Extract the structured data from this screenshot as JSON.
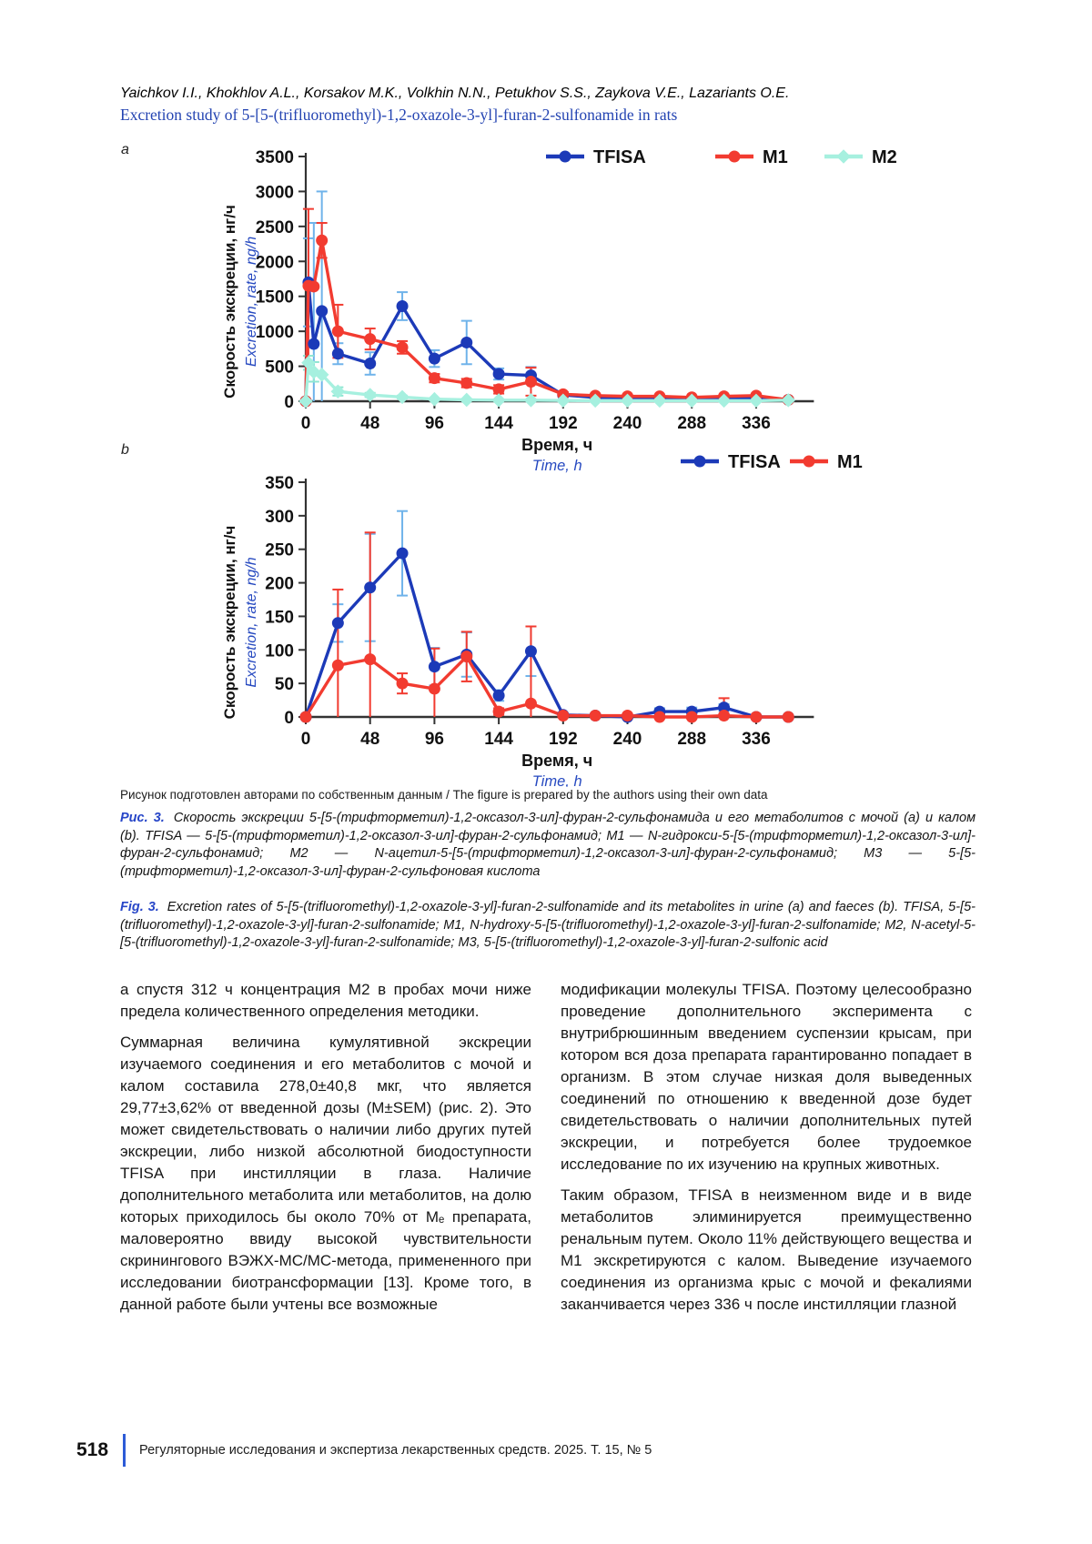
{
  "header": {
    "authors": "Yaichkov I.I., Khokhlov A.L., Korsakov M.K., Volkhin N.N., Petukhov S.S., Zaykova V.E., Lazariants O.E.",
    "title": "Excretion study of 5-[5-(trifluoromethyl)-1,2-oxazole-3-yl]-furan-2-sulfonamide in rats"
  },
  "figure": {
    "source_note": "Рисунок подготовлен авторами по собственным данным / The figure is prepared by the authors using their own data",
    "caption_ru_label": "Рис. 3.",
    "caption_ru": "Скорость экскреции 5-[5-(трифторметил)-1,2-оксазол-3-ил]-фуран-2-сульфонамида и его метаболитов с мочой (a) и калом (b). TFISA — 5-[5-(трифторметил)-1,2-оксазол-3-ил]-фуран-2-сульфонамид; M1 — N-гидрокси-5-[5-(трифторметил)-1,2-оксазол-3-ил]-фуран-2-сульфонамид; M2 — N-ацетил-5-[5-(трифторметил)-1,2-оксазол-3-ил]-фуран-2-сульфонамид; M3 — 5-[5-(трифторметил)-1,2-оксазол-3-ил]-фуран-2-сульфоновая кислота",
    "caption_en_label": "Fig. 3.",
    "caption_en": "Excretion rates of 5-[5-(trifluoromethyl)-1,2-oxazole-3-yl]-furan-2-sulfonamide and its metabolites in urine (a) and faeces (b). TFISA, 5-[5-(trifluoromethyl)-1,2-oxazole-3-yl]-furan-2-sulfonamide; M1, N-hydroxy-5-[5-(trifluoromethyl)-1,2-oxazole-3-yl]-furan-2-sulfonamide; M2, N-acetyl-5-[5-(trifluoromethyl)-1,2-oxazole-3-yl]-furan-2-sulfonamide; M3, 5-[5-(trifluoromethyl)-1,2-oxazole-3-yl]-furan-2-sulfonic acid"
  },
  "body": {
    "left": [
      "а спустя 312 ч концентрация M2 в пробах мочи ниже предела количественного определения методики.",
      "Суммарная величина кумулятивной экскреции изучаемого соединения и его метаболитов с мочой и калом составила 278,0±40,8 мкг, что является 29,77±3,62% от введенной дозы (M±SEM) (рис. 2). Это может свидетельствовать о наличии либо других путей экскреции, либо низкой абсолютной биодоступности TFISA при инстилляции в глаза. Наличие дополнительного метаболита или метаболитов, на долю которых приходилось бы около 70% от Mₑ препарата, маловероятно ввиду высокой чувствительности скринингового ВЭЖХ-МС/МС-метода, примененного при исследовании биотрансформации [13]. Кроме того, в данной работе были учтены все возможные"
    ],
    "right": [
      "модификации молекулы TFISA. Поэтому целесообразно проведение дополнительного эксперимента с внутрибрюшинным введением суспензии крысам, при котором вся доза препарата гарантированно попадает в организм. В этом случае низкая доля выведенных соединений по отношению к введенной дозе будет свидетельствовать о наличии дополнительных путей экскреции, и потребуется более трудоемкое исследование по их изучению на крупных животных.",
      "Таким образом, TFISA в неизменном виде и в виде метаболитов элиминируется преимущественно ренальным путем. Около 11% действующего вещества и M1 экскретируются с калом. Выведение изучаемого соединения из организма крыс с мочой и фекалиями заканчивается через 336 ч после инстилляции глазной"
    ]
  },
  "footer": {
    "page_number": "518",
    "journal": "Регуляторные исследования и экспертиза лекарственных средств. 2025. Т. 15, № 5"
  },
  "chart_data": [
    {
      "id": "a",
      "panel_label": "a",
      "type": "line",
      "xlabel_ru": "Время, ч",
      "xlabel_en": "Time, h",
      "ylabel_ru": "Скорость экскреции, нг/ч",
      "ylabel_en": "Excretion, rate, ng/h",
      "xlim": [
        0,
        375
      ],
      "ylim": [
        0,
        3500
      ],
      "x_ticks": [
        0,
        48,
        96,
        144,
        192,
        240,
        288,
        336
      ],
      "y_ticks": [
        0,
        500,
        1000,
        1500,
        2000,
        2500,
        3000,
        3500
      ],
      "grid": false,
      "legend_position": "top",
      "series": [
        {
          "name": "TFISA",
          "color": "#1c3ab8",
          "err_color": "#6fb3ea",
          "marker": "circle",
          "x": [
            0,
            2,
            6,
            12,
            24,
            48,
            72,
            96,
            120,
            144,
            168,
            192,
            216,
            240,
            264,
            288,
            312,
            336,
            360
          ],
          "y": [
            0,
            1700,
            820,
            1290,
            680,
            540,
            1360,
            610,
            840,
            390,
            370,
            90,
            55,
            50,
            50,
            45,
            45,
            40,
            20
          ],
          "err": [
            0,
            630,
            1730,
            1710,
            150,
            160,
            200,
            120,
            310,
            80,
            120,
            25,
            15,
            15,
            15,
            12,
            12,
            12,
            8
          ]
        },
        {
          "name": "M1",
          "color": "#f23b30",
          "err_color": "#f23b30",
          "marker": "circle",
          "x": [
            0,
            2,
            6,
            12,
            24,
            48,
            72,
            96,
            120,
            144,
            168,
            192,
            216,
            240,
            264,
            288,
            312,
            336,
            360
          ],
          "y": [
            0,
            1650,
            1640,
            2300,
            1000,
            890,
            770,
            330,
            260,
            170,
            280,
            100,
            80,
            70,
            70,
            55,
            70,
            80,
            20
          ],
          "err": [
            0,
            1100,
            0,
            250,
            380,
            150,
            90,
            60,
            60,
            60,
            200,
            30,
            20,
            15,
            15,
            12,
            20,
            25,
            8
          ]
        },
        {
          "name": "M2",
          "color": "#a6f0df",
          "err_color": "#8ee6d2",
          "marker": "diamond",
          "x": [
            0,
            2,
            6,
            12,
            24,
            48,
            72,
            96,
            120,
            144,
            168,
            192,
            216,
            240,
            264,
            288,
            312,
            336,
            360
          ],
          "y": [
            0,
            550,
            420,
            380,
            140,
            90,
            60,
            30,
            20,
            15,
            15,
            10,
            8,
            8,
            8,
            8,
            8,
            8,
            15
          ],
          "err": [
            0,
            100,
            140,
            0,
            60,
            30,
            20,
            10,
            8,
            5,
            5,
            4,
            3,
            3,
            3,
            3,
            3,
            3,
            5
          ]
        }
      ]
    },
    {
      "id": "b",
      "panel_label": "b",
      "type": "line",
      "xlabel_ru": "Время, ч",
      "xlabel_en": "Time, h",
      "ylabel_ru": "Скорость экскреции, нг/ч",
      "ylabel_en": "Excretion, rate, ng/h",
      "xlim": [
        0,
        375
      ],
      "ylim": [
        0,
        350
      ],
      "x_ticks": [
        0,
        48,
        96,
        144,
        192,
        240,
        288,
        336
      ],
      "y_ticks": [
        0,
        50,
        100,
        150,
        200,
        250,
        300,
        350
      ],
      "grid": false,
      "legend_position": "top",
      "series": [
        {
          "name": "TFISA",
          "color": "#1c3ab8",
          "err_color": "#6fb3ea",
          "marker": "circle",
          "x": [
            0,
            24,
            48,
            72,
            96,
            120,
            144,
            168,
            192,
            216,
            240,
            264,
            288,
            312,
            336,
            360
          ],
          "y": [
            0,
            140,
            193,
            244,
            75,
            93,
            32,
            98,
            3,
            2,
            0,
            8,
            8,
            14,
            0,
            0
          ],
          "err": [
            0,
            28,
            80,
            63,
            28,
            33,
            8,
            37,
            2,
            1,
            0,
            5,
            6,
            5,
            0,
            0
          ]
        },
        {
          "name": "M1",
          "color": "#f23b30",
          "err_color": "#f23b30",
          "marker": "circle",
          "x": [
            0,
            24,
            48,
            72,
            96,
            120,
            144,
            168,
            192,
            216,
            240,
            264,
            288,
            312,
            336,
            360
          ],
          "y": [
            0,
            77,
            86,
            50,
            42,
            90,
            8,
            20,
            2,
            2,
            2,
            0,
            0,
            2,
            0,
            0
          ],
          "err": [
            0,
            113,
            189,
            15,
            60,
            37,
            5,
            115,
            2,
            1,
            1,
            0,
            0,
            26,
            0,
            0
          ]
        }
      ]
    }
  ]
}
